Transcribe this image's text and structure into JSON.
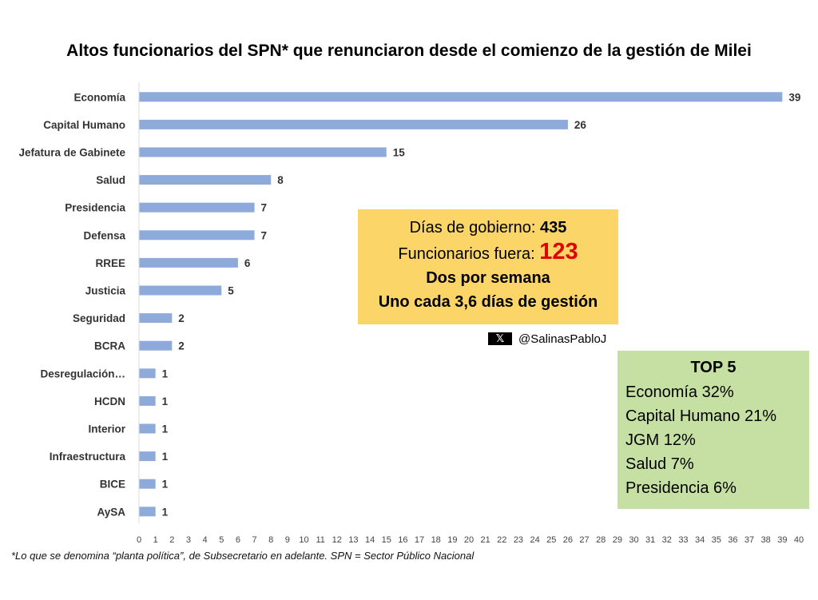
{
  "title": "Altos funcionarios del SPN* que renunciaron desde el comienzo de la gestión de Milei",
  "chart_data": {
    "type": "bar",
    "orientation": "horizontal",
    "categories": [
      "Economía",
      "Capital Humano",
      "Jefatura de Gabinete",
      "Salud",
      "Presidencia",
      "Defensa",
      "RREE",
      "Justicia",
      "Seguridad",
      "BCRA",
      "Desregulación…",
      "HCDN",
      "Interior",
      "Infraestructura",
      "BICE",
      "AySA"
    ],
    "values": [
      39,
      26,
      15,
      8,
      7,
      7,
      6,
      5,
      2,
      2,
      1,
      1,
      1,
      1,
      1,
      1
    ],
    "xlim": [
      0,
      40
    ],
    "xticks": [
      0,
      1,
      2,
      3,
      4,
      5,
      6,
      7,
      8,
      9,
      10,
      11,
      12,
      13,
      14,
      15,
      16,
      17,
      18,
      19,
      20,
      21,
      22,
      23,
      24,
      25,
      26,
      27,
      28,
      29,
      30,
      31,
      32,
      33,
      34,
      35,
      36,
      37,
      38,
      39,
      40
    ],
    "bar_color": "#8eaadb",
    "grid": false,
    "data_labels": true
  },
  "info_box": {
    "dias_label": "Días de gobierno: ",
    "dias_value": "435",
    "funcionarios_label": "Funcionarios fuera: ",
    "funcionarios_value": "123",
    "line3": "Dos por semana",
    "line4": "Uno cada 3,6 días de gestión",
    "background": "#fbd568",
    "highlight_color": "#e00000"
  },
  "social": {
    "icon": "x-icon",
    "icon_glyph": "𝕏",
    "handle": "@SalinasPabloJ"
  },
  "top5": {
    "title": "TOP 5",
    "items": [
      "Economía 32%",
      "Capital Humano 21%",
      "JGM 12%",
      "Salud 7%",
      "Presidencia 6%"
    ],
    "background": "#c6e0a4"
  },
  "footnote": "*Lo que se denomina “planta política”, de Subsecretario en adelante. SPN = Sector Público Nacional"
}
